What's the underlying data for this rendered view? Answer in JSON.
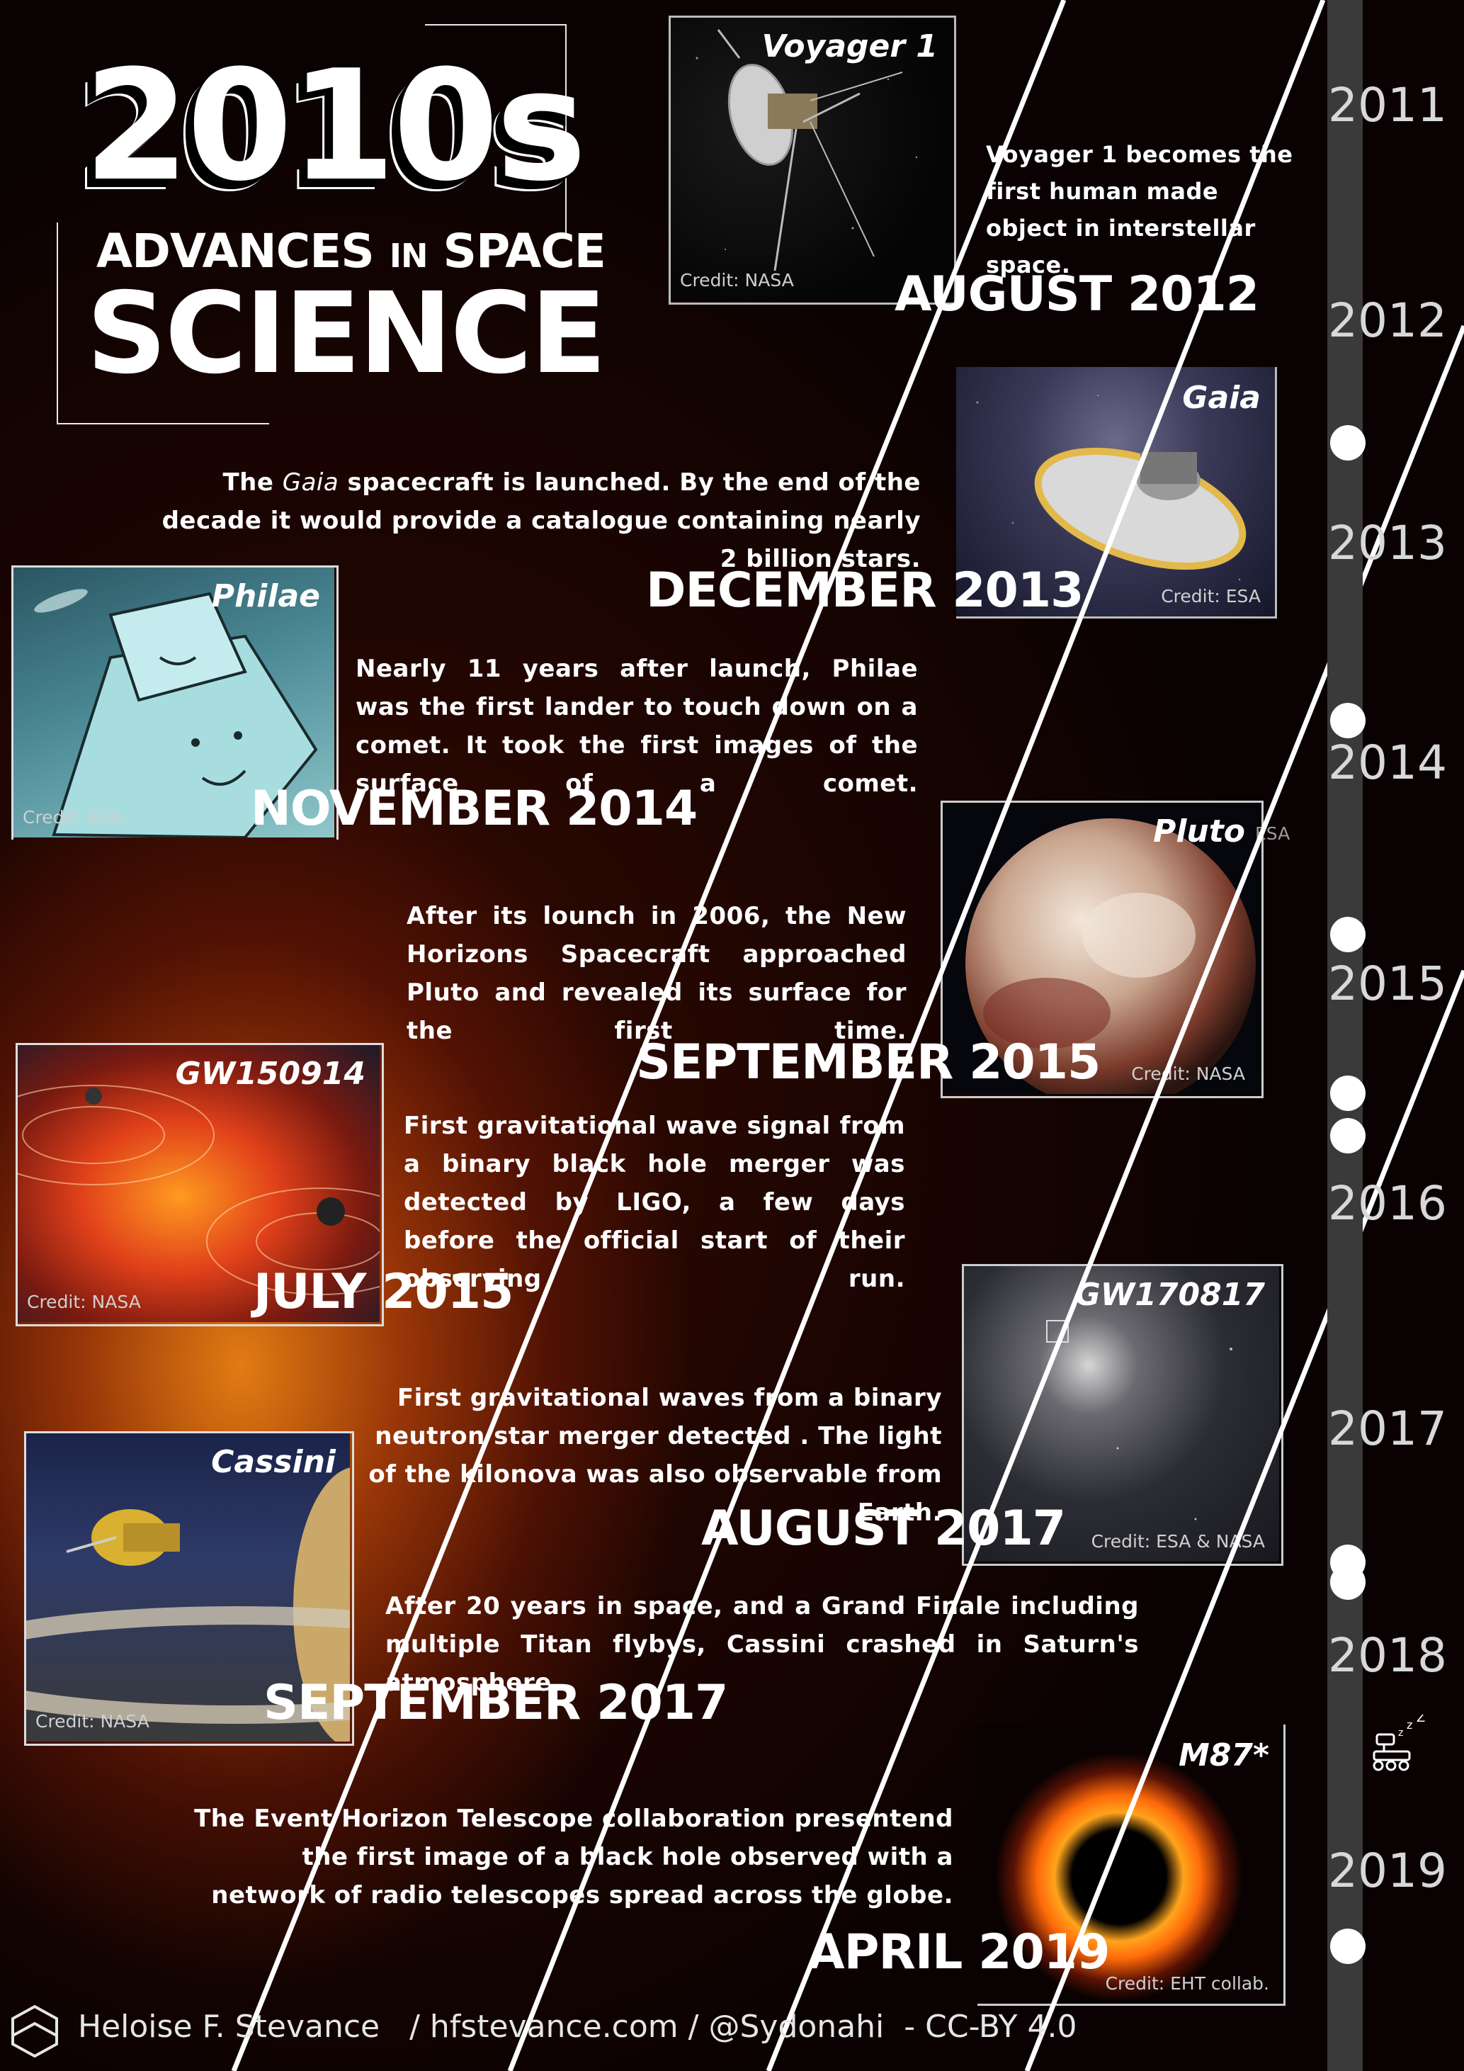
{
  "logo": {
    "year": "2010s",
    "line2_a": "ADVANCES",
    "line2_b": "IN",
    "line2_c": "SPACE",
    "line3": "SCIENCE"
  },
  "events": [
    {
      "id": "voyager",
      "label": "Voyager 1",
      "credit": "Credit: NASA",
      "text": "Voyager 1 becomes the first human made object in interstellar space.",
      "date": "AUGUST 2012"
    },
    {
      "id": "gaia",
      "label": "Gaia",
      "credit": "Credit: ESA",
      "text_pre": "The ",
      "text_em": "Gaia",
      "text_post": " spacecraft is launched. By the end of the decade it would provide a catalogue containing nearly 2 billion stars.",
      "date": "DECEMBER 2013"
    },
    {
      "id": "philae",
      "label": "Philae",
      "credit": "Credit: ESA",
      "text": "Nearly 11 years after launch, Philae was the first lander to touch down on a comet. It took the first images of the surface of a comet.",
      "date": "NOVEMBER 2014"
    },
    {
      "id": "pluto",
      "label": "Pluto",
      "credit": "Credit: NASA",
      "credit_extra": "ESA",
      "text": "After its lounch in 2006, the New Horizons Spacecraft approached Pluto and revealed its surface for the first time.",
      "date": "SEPTEMBER 2015"
    },
    {
      "id": "gw150914",
      "label": "GW150914",
      "credit": "Credit: NASA",
      "text": "First gravitational wave signal from a binary black hole merger was detected by LIGO, a few days before the official start of their observing run.",
      "date": "JULY 2015"
    },
    {
      "id": "gw170817",
      "label": "GW170817",
      "credit": "Credit: ESA & NASA",
      "text": "First gravitational waves from a binary neutron star merger detected . The light of the kilonova was also observable from Earth.",
      "date": "AUGUST 2017"
    },
    {
      "id": "cassini",
      "label": "Cassini",
      "credit": "Credit: NASA",
      "text": "After 20 years in space, and a Grand Finale including multiple Titan flybys, Cassini crashed in Saturn's atmosphere",
      "date": "SEPTEMBER 2017"
    },
    {
      "id": "m87",
      "label": "M87*",
      "credit": "Credit: EHT collab.",
      "text": "The Event Horizon Telescope collaboration presentend the first image of a black hole observed with a network of radio telescopes spread across the globe.",
      "date": "APRIL 2019"
    }
  ],
  "timeline": {
    "years": [
      "2011",
      "2012",
      "2013",
      "2014",
      "2015",
      "2016",
      "2017",
      "2018",
      "2019"
    ],
    "sleep_icon_text": "zZZ"
  },
  "footer": {
    "author": "Heloise F. Stevance",
    "sep1": "/",
    "site": "hfstevance.com",
    "sep2": "/",
    "handle": "@Sydonahi",
    "sep3": "-",
    "license": "CC-BY 4.0"
  },
  "colors": {
    "background_dark": "#090202",
    "glow_orange": "#eb8214",
    "timeline_bar": "#3a3a3a",
    "text": "#ffffff"
  }
}
